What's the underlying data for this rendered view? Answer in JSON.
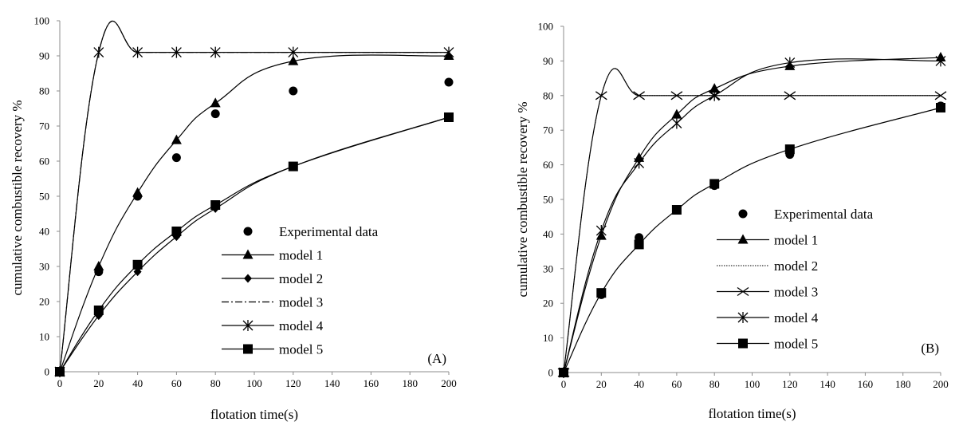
{
  "chart_data": [
    {
      "type": "line",
      "panel_label": "(A)",
      "xlabel": "flotation time(s)",
      "ylabel": "cumulative combustible recovery %",
      "xlim": [
        0,
        200
      ],
      "ylim": [
        0,
        100
      ],
      "x_ticks": [
        "0",
        "20",
        "40",
        "60",
        "80",
        "100",
        "120",
        "140",
        "160",
        "180",
        "200"
      ],
      "y_ticks": [
        "0",
        "10",
        "20",
        "30",
        "40",
        "50",
        "60",
        "70",
        "80",
        "90",
        "100"
      ],
      "grid": false,
      "legend_position": "center-right",
      "series": [
        {
          "name": "Experimental data",
          "marker": "circle",
          "line": "none",
          "x": [
            0,
            20,
            40,
            60,
            80,
            120,
            200
          ],
          "y": [
            0,
            28.5,
            50,
            61,
            73.5,
            80,
            82.5
          ]
        },
        {
          "name": "model 1",
          "marker": "triangle",
          "line": "solid",
          "x": [
            0,
            20,
            40,
            60,
            80,
            120,
            200
          ],
          "y": [
            0,
            30,
            51,
            66,
            76.5,
            88.5,
            90
          ]
        },
        {
          "name": "model 2",
          "marker": "diamond",
          "line": "solid",
          "x": [
            0,
            20,
            40,
            60,
            80,
            120,
            200
          ],
          "y": [
            0,
            16,
            28.5,
            38.5,
            46.5,
            58.5,
            72.5
          ]
        },
        {
          "name": "model 3",
          "marker": "none",
          "line": "dashdot",
          "x": [
            0,
            20,
            40,
            60,
            80,
            120,
            200
          ],
          "y": [
            0,
            91,
            91,
            91,
            91,
            91,
            91
          ]
        },
        {
          "name": "model 4",
          "marker": "asterisk",
          "line": "solid",
          "x": [
            0,
            20,
            40,
            60,
            80,
            120,
            200
          ],
          "y": [
            0,
            91,
            91,
            91,
            91,
            91,
            91
          ]
        },
        {
          "name": "model 5",
          "marker": "square",
          "line": "solid",
          "x": [
            0,
            20,
            40,
            60,
            80,
            120,
            200
          ],
          "y": [
            0,
            17.5,
            30.5,
            40,
            47.5,
            58.5,
            72.5
          ]
        }
      ],
      "legend": [
        "Experimental data",
        "model 1",
        "model 2",
        "model 3",
        "model 4",
        "model 5"
      ]
    },
    {
      "type": "line",
      "panel_label": "(B)",
      "xlabel": "flotation time(s)",
      "ylabel": "cumulative combustible recovery %",
      "xlim": [
        0,
        200
      ],
      "ylim": [
        0,
        100
      ],
      "x_ticks": [
        "0",
        "20",
        "40",
        "60",
        "80",
        "100",
        "120",
        "140",
        "160",
        "180",
        "200"
      ],
      "y_ticks": [
        "0",
        "10",
        "20",
        "30",
        "40",
        "50",
        "60",
        "70",
        "80",
        "90",
        "100"
      ],
      "grid": false,
      "legend_position": "center-right",
      "series": [
        {
          "name": "Experimental data",
          "marker": "circle",
          "line": "none",
          "x": [
            0,
            20,
            40,
            60,
            80,
            120,
            200
          ],
          "y": [
            0,
            22.5,
            39,
            47,
            54,
            63,
            77
          ]
        },
        {
          "name": "model 1",
          "marker": "triangle",
          "line": "solid",
          "x": [
            0,
            20,
            40,
            60,
            80,
            120,
            200
          ],
          "y": [
            0,
            39.5,
            62,
            74.5,
            82,
            88.5,
            91
          ]
        },
        {
          "name": "model 2",
          "marker": "none",
          "line": "dotted",
          "x": [
            0,
            20,
            40,
            60,
            80,
            120,
            200
          ],
          "y": [
            0,
            80,
            80,
            80,
            80,
            80,
            80
          ]
        },
        {
          "name": "model 3",
          "marker": "x",
          "line": "solid",
          "x": [
            0,
            20,
            40,
            60,
            80,
            120,
            200
          ],
          "y": [
            0,
            80,
            80,
            80,
            80,
            80,
            80
          ]
        },
        {
          "name": "model 4",
          "marker": "asterisk",
          "line": "solid",
          "x": [
            0,
            20,
            40,
            60,
            80,
            120,
            200
          ],
          "y": [
            0,
            41,
            60.5,
            72,
            80,
            89.5,
            90
          ]
        },
        {
          "name": "model 5",
          "marker": "square",
          "line": "solid",
          "x": [
            0,
            20,
            40,
            60,
            80,
            120,
            200
          ],
          "y": [
            0,
            23,
            37,
            47,
            54.5,
            64.5,
            76.5
          ]
        }
      ],
      "legend": [
        "Experimental data",
        "model 1",
        "model 2",
        "model 3",
        "model 4",
        "model 5"
      ]
    }
  ]
}
